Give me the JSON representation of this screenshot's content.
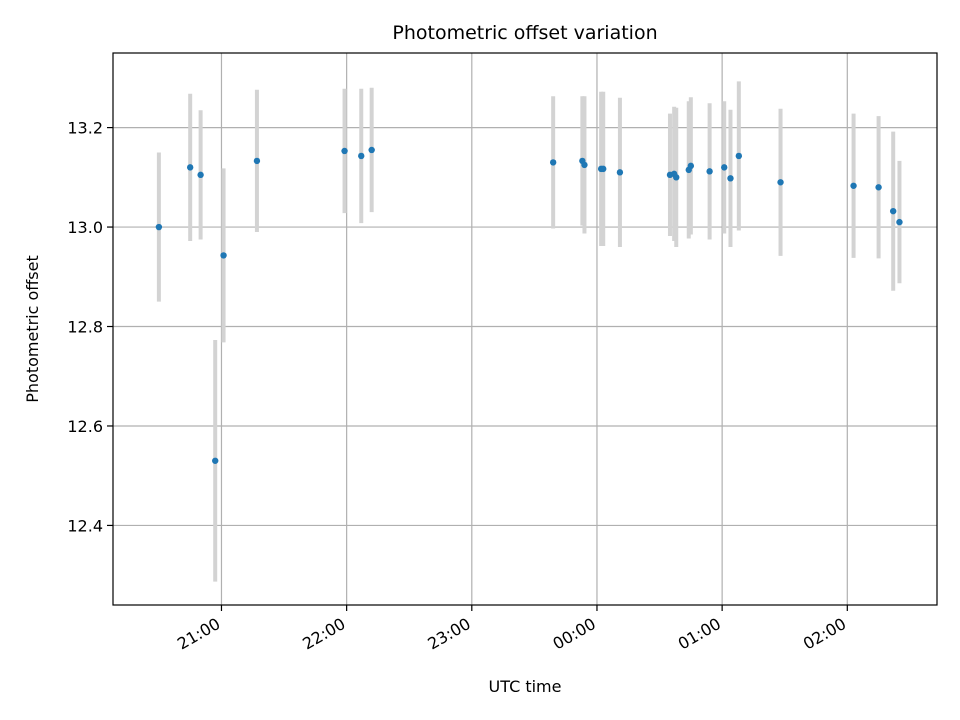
{
  "chart_data": {
    "type": "scatter",
    "title": "Photometric offset variation",
    "xlabel": "UTC time",
    "ylabel": "Photometric offset",
    "x_unit": "hours",
    "xlim": [
      "20:08",
      "02:43"
    ],
    "ylim": [
      12.24,
      13.35
    ],
    "x_ticks": [
      "21:00",
      "22:00",
      "23:00",
      "00:00",
      "01:00",
      "02:00"
    ],
    "y_ticks": [
      "12.4",
      "12.6",
      "12.8",
      "13.0",
      "13.2"
    ],
    "grid": true,
    "colors": {
      "point": "#1f77b4",
      "errorbar": "#d3d3d3",
      "grid": "#b0b0b0"
    },
    "points": [
      {
        "time": "20:30",
        "y": 13.0,
        "err": 0.15
      },
      {
        "time": "20:45",
        "y": 13.12,
        "err": 0.148
      },
      {
        "time": "20:50",
        "y": 13.105,
        "err": 0.13
      },
      {
        "time": "20:57",
        "y": 12.53,
        "err": 0.243
      },
      {
        "time": "21:01",
        "y": 12.943,
        "err": 0.175
      },
      {
        "time": "21:17",
        "y": 13.133,
        "err": 0.143
      },
      {
        "time": "21:59",
        "y": 13.153,
        "err": 0.125
      },
      {
        "time": "22:07",
        "y": 13.143,
        "err": 0.135
      },
      {
        "time": "22:12",
        "y": 13.155,
        "err": 0.125
      },
      {
        "time": "23:39",
        "y": 13.13,
        "err": 0.133
      },
      {
        "time": "23:53",
        "y": 13.133,
        "err": 0.13
      },
      {
        "time": "23:54",
        "y": 13.125,
        "err": 0.138
      },
      {
        "time": "00:02",
        "y": 13.117,
        "err": 0.155
      },
      {
        "time": "00:03",
        "y": 13.117,
        "err": 0.155
      },
      {
        "time": "00:11",
        "y": 13.11,
        "err": 0.15
      },
      {
        "time": "00:35",
        "y": 13.105,
        "err": 0.123
      },
      {
        "time": "00:37",
        "y": 13.107,
        "err": 0.135
      },
      {
        "time": "00:38",
        "y": 13.1,
        "err": 0.14
      },
      {
        "time": "00:44",
        "y": 13.115,
        "err": 0.138
      },
      {
        "time": "00:45",
        "y": 13.123,
        "err": 0.138
      },
      {
        "time": "00:54",
        "y": 13.112,
        "err": 0.137
      },
      {
        "time": "01:01",
        "y": 13.12,
        "err": 0.133
      },
      {
        "time": "01:04",
        "y": 13.098,
        "err": 0.138
      },
      {
        "time": "01:08",
        "y": 13.143,
        "err": 0.15
      },
      {
        "time": "01:28",
        "y": 13.09,
        "err": 0.148
      },
      {
        "time": "02:03",
        "y": 13.083,
        "err": 0.145
      },
      {
        "time": "02:15",
        "y": 13.08,
        "err": 0.143
      },
      {
        "time": "02:22",
        "y": 13.032,
        "err": 0.16
      },
      {
        "time": "02:25",
        "y": 13.01,
        "err": 0.123
      }
    ]
  }
}
